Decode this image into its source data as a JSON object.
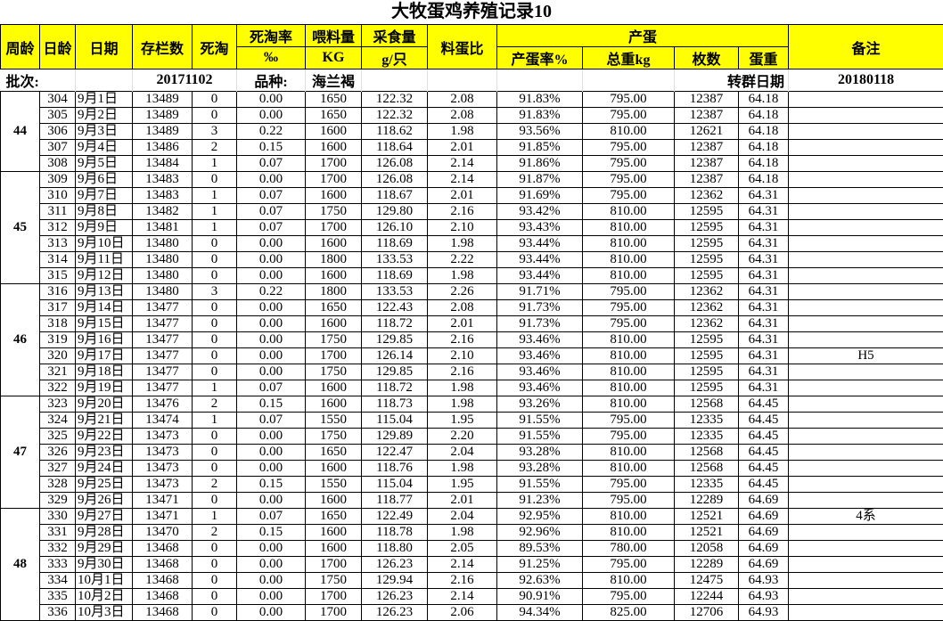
{
  "title": "大牧蛋鸡养殖记录10",
  "info": {
    "batch_label": "批次:",
    "batch_value": "20171102",
    "breed_label": "品种:",
    "breed_value": "海兰褐",
    "transfer_label": "转群日期",
    "transfer_value": "20180118"
  },
  "header": {
    "week": "周龄",
    "day": "日龄",
    "date": "日期",
    "stock": "存栏数",
    "cull": "死淘",
    "cull_rate": "死淘率",
    "cull_rate_unit": "‰",
    "feed": "喂料量",
    "feed_unit": "KG",
    "intake": "采食量",
    "intake_unit": "g/只",
    "ratio": "料蛋比",
    "eggs": "产蛋",
    "lay_rate": "产蛋率%",
    "total_weight": "总重kg",
    "count": "枚数",
    "egg_weight": "蛋重",
    "remark": "备注"
  },
  "header_color": "#ffff00",
  "weeks": [
    {
      "week": "44",
      "rows": [
        [
          "304",
          "9月1日",
          "13489",
          "0",
          "0.00",
          "1650",
          "122.32",
          "2.08",
          "91.83%",
          "795.00",
          "12387",
          "64.18",
          ""
        ],
        [
          "305",
          "9月2日",
          "13489",
          "0",
          "0.00",
          "1650",
          "122.32",
          "2.08",
          "91.83%",
          "795.00",
          "12387",
          "64.18",
          ""
        ],
        [
          "306",
          "9月3日",
          "13489",
          "3",
          "0.22",
          "1600",
          "118.62",
          "1.98",
          "93.56%",
          "810.00",
          "12621",
          "64.18",
          ""
        ],
        [
          "307",
          "9月4日",
          "13486",
          "2",
          "0.15",
          "1600",
          "118.64",
          "2.01",
          "91.85%",
          "795.00",
          "12387",
          "64.18",
          ""
        ],
        [
          "308",
          "9月5日",
          "13484",
          "1",
          "0.07",
          "1700",
          "126.08",
          "2.14",
          "91.86%",
          "795.00",
          "12387",
          "64.18",
          ""
        ]
      ]
    },
    {
      "week": "45",
      "rows": [
        [
          "309",
          "9月6日",
          "13483",
          "0",
          "0.00",
          "1700",
          "126.08",
          "2.14",
          "91.87%",
          "795.00",
          "12387",
          "64.18",
          ""
        ],
        [
          "310",
          "9月7日",
          "13483",
          "1",
          "0.07",
          "1600",
          "118.67",
          "2.01",
          "91.69%",
          "795.00",
          "12362",
          "64.31",
          ""
        ],
        [
          "311",
          "9月8日",
          "13482",
          "1",
          "0.07",
          "1750",
          "129.80",
          "2.16",
          "93.42%",
          "810.00",
          "12595",
          "64.31",
          ""
        ],
        [
          "312",
          "9月9日",
          "13481",
          "1",
          "0.07",
          "1700",
          "126.10",
          "2.10",
          "93.43%",
          "810.00",
          "12595",
          "64.31",
          ""
        ],
        [
          "313",
          "9月10日",
          "13480",
          "0",
          "0.00",
          "1600",
          "118.69",
          "1.98",
          "93.44%",
          "810.00",
          "12595",
          "64.31",
          ""
        ],
        [
          "314",
          "9月11日",
          "13480",
          "0",
          "0.00",
          "1800",
          "133.53",
          "2.22",
          "93.44%",
          "810.00",
          "12595",
          "64.31",
          ""
        ],
        [
          "315",
          "9月12日",
          "13480",
          "0",
          "0.00",
          "1600",
          "118.69",
          "1.98",
          "93.44%",
          "810.00",
          "12595",
          "64.31",
          ""
        ]
      ]
    },
    {
      "week": "46",
      "rows": [
        [
          "316",
          "9月13日",
          "13480",
          "3",
          "0.22",
          "1800",
          "133.53",
          "2.26",
          "91.71%",
          "795.00",
          "12362",
          "64.31",
          ""
        ],
        [
          "317",
          "9月14日",
          "13477",
          "0",
          "0.00",
          "1650",
          "122.43",
          "2.08",
          "91.73%",
          "795.00",
          "12362",
          "64.31",
          ""
        ],
        [
          "318",
          "9月15日",
          "13477",
          "0",
          "0.00",
          "1600",
          "118.72",
          "2.01",
          "91.73%",
          "795.00",
          "12362",
          "64.31",
          ""
        ],
        [
          "319",
          "9月16日",
          "13477",
          "0",
          "0.00",
          "1750",
          "129.85",
          "2.16",
          "93.46%",
          "810.00",
          "12595",
          "64.31",
          ""
        ],
        [
          "320",
          "9月17日",
          "13477",
          "0",
          "0.00",
          "1700",
          "126.14",
          "2.10",
          "93.46%",
          "810.00",
          "12595",
          "64.31",
          "H5"
        ],
        [
          "321",
          "9月18日",
          "13477",
          "0",
          "0.00",
          "1750",
          "129.85",
          "2.16",
          "93.46%",
          "810.00",
          "12595",
          "64.31",
          ""
        ],
        [
          "322",
          "9月19日",
          "13477",
          "1",
          "0.07",
          "1600",
          "118.72",
          "1.98",
          "93.46%",
          "810.00",
          "12595",
          "64.31",
          ""
        ]
      ]
    },
    {
      "week": "47",
      "rows": [
        [
          "323",
          "9月20日",
          "13476",
          "2",
          "0.15",
          "1600",
          "118.73",
          "1.98",
          "93.26%",
          "810.00",
          "12568",
          "64.45",
          ""
        ],
        [
          "324",
          "9月21日",
          "13474",
          "1",
          "0.07",
          "1550",
          "115.04",
          "1.95",
          "91.55%",
          "795.00",
          "12335",
          "64.45",
          ""
        ],
        [
          "325",
          "9月22日",
          "13473",
          "0",
          "0.00",
          "1750",
          "129.89",
          "2.20",
          "91.55%",
          "795.00",
          "12335",
          "64.45",
          ""
        ],
        [
          "326",
          "9月23日",
          "13473",
          "0",
          "0.00",
          "1650",
          "122.47",
          "2.04",
          "93.28%",
          "810.00",
          "12568",
          "64.45",
          ""
        ],
        [
          "327",
          "9月24日",
          "13473",
          "0",
          "0.00",
          "1600",
          "118.76",
          "1.98",
          "93.28%",
          "810.00",
          "12568",
          "64.45",
          ""
        ],
        [
          "328",
          "9月25日",
          "13473",
          "2",
          "0.15",
          "1550",
          "115.04",
          "1.95",
          "91.55%",
          "795.00",
          "12335",
          "64.45",
          ""
        ],
        [
          "329",
          "9月26日",
          "13471",
          "0",
          "0.00",
          "1600",
          "118.77",
          "2.01",
          "91.23%",
          "795.00",
          "12289",
          "64.69",
          ""
        ]
      ]
    },
    {
      "week": "48",
      "rows": [
        [
          "330",
          "9月27日",
          "13471",
          "1",
          "0.07",
          "1650",
          "122.49",
          "2.04",
          "92.95%",
          "810.00",
          "12521",
          "64.69",
          "4系"
        ],
        [
          "331",
          "9月28日",
          "13470",
          "2",
          "0.15",
          "1600",
          "118.78",
          "1.98",
          "92.96%",
          "810.00",
          "12521",
          "64.69",
          ""
        ],
        [
          "332",
          "9月29日",
          "13468",
          "0",
          "0.00",
          "1600",
          "118.80",
          "2.05",
          "89.53%",
          "780.00",
          "12058",
          "64.69",
          ""
        ],
        [
          "333",
          "9月30日",
          "13468",
          "0",
          "0.00",
          "1700",
          "126.23",
          "2.14",
          "91.25%",
          "795.00",
          "12289",
          "64.69",
          ""
        ],
        [
          "334",
          "10月1日",
          "13468",
          "0",
          "0.00",
          "1750",
          "129.94",
          "2.16",
          "92.63%",
          "810.00",
          "12475",
          "64.93",
          ""
        ],
        [
          "335",
          "10月2日",
          "13468",
          "0",
          "0.00",
          "1700",
          "126.23",
          "2.14",
          "90.91%",
          "795.00",
          "12244",
          "64.93",
          ""
        ],
        [
          "336",
          "10月3日",
          "13468",
          "0",
          "0.00",
          "1700",
          "126.23",
          "2.06",
          "94.34%",
          "825.00",
          "12706",
          "64.93",
          ""
        ]
      ]
    }
  ]
}
